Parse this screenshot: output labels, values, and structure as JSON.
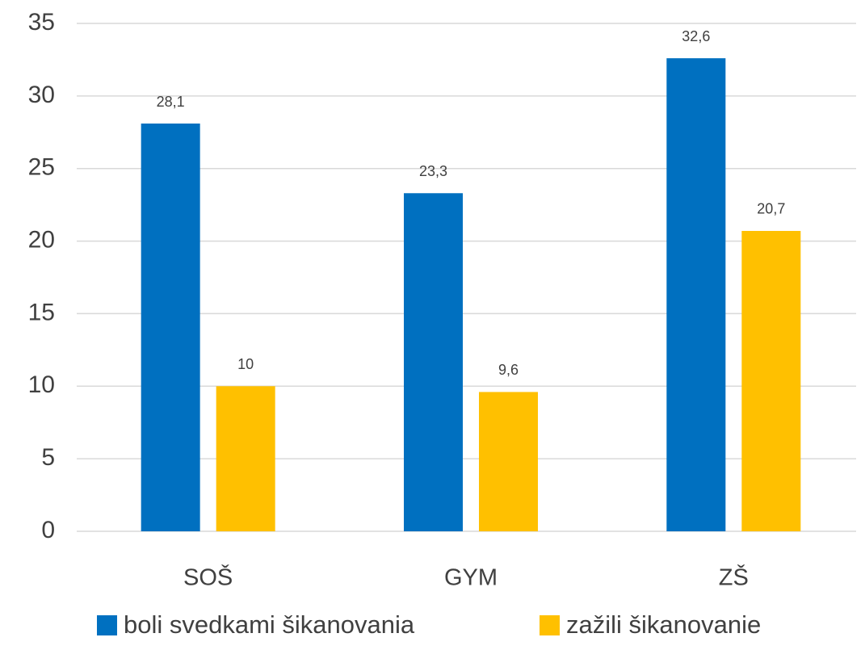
{
  "chart_data": {
    "type": "bar",
    "categories": [
      "SOŠ",
      "GYM",
      "ZŠ"
    ],
    "series": [
      {
        "name": "boli svedkami šikanovania",
        "color": "#0070c0",
        "values": [
          28.1,
          23.3,
          32.6
        ],
        "value_labels": [
          "28,1",
          "23,3",
          "32,6"
        ]
      },
      {
        "name": "zažili šikanovanie",
        "color": "#ffc000",
        "values": [
          10,
          9.6,
          20.7
        ],
        "value_labels": [
          "10",
          "9,6",
          "20,7"
        ]
      }
    ],
    "ylim": [
      0,
      35
    ],
    "yticks": [
      0,
      5,
      10,
      15,
      20,
      25,
      30,
      35
    ],
    "grid": true,
    "legend": "bottom"
  }
}
